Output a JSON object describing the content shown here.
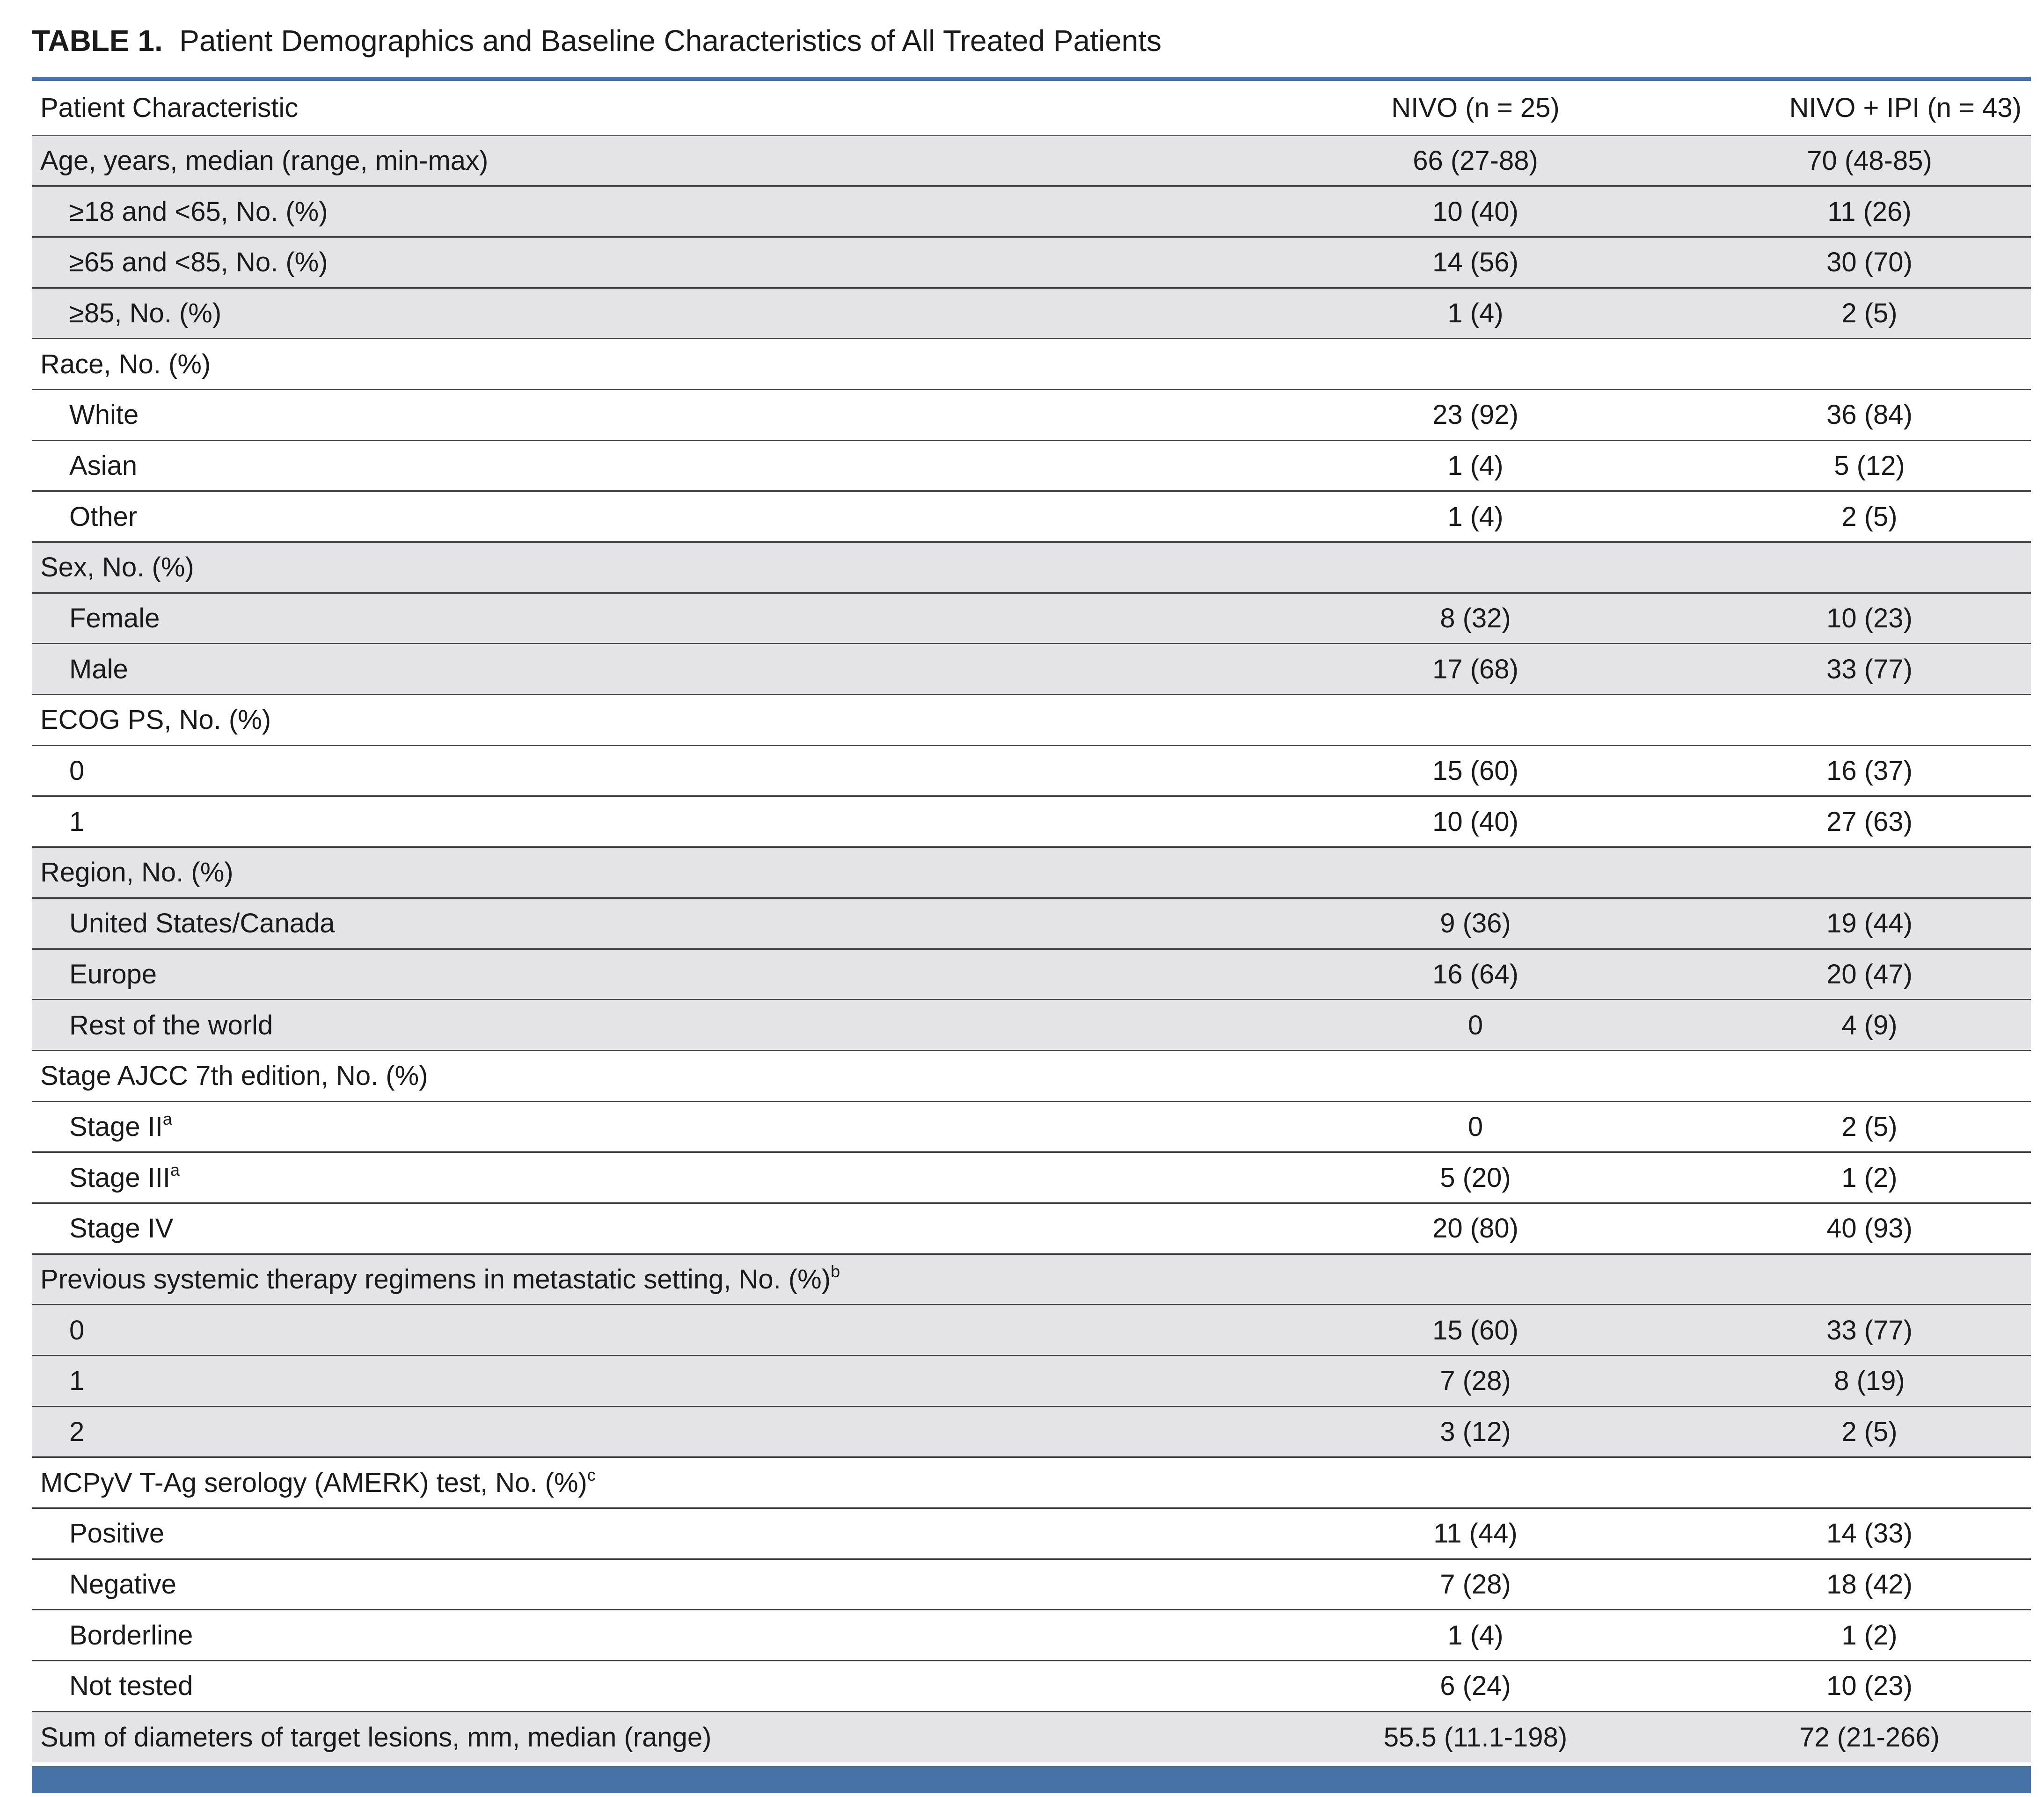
{
  "caption": {
    "label": "TABLE 1.",
    "text": "Patient Demographics and Baseline Characteristics of All Treated Patients"
  },
  "columns": [
    "Patient Characteristic",
    "NIVO (n = 25)",
    "NIVO + IPI (n = 43)"
  ],
  "rows": [
    {
      "label": "Age, years, median (range, min-max)",
      "sup": "",
      "indent": false,
      "shade": true,
      "nivo": "66 (27-88)",
      "combo": "70 (48-85)"
    },
    {
      "label": "≥18 and <65, No. (%)",
      "sup": "",
      "indent": true,
      "shade": true,
      "nivo": "10 (40)",
      "combo": "11 (26)"
    },
    {
      "label": "≥65 and <85, No. (%)",
      "sup": "",
      "indent": true,
      "shade": true,
      "nivo": "14 (56)",
      "combo": "30 (70)"
    },
    {
      "label": "≥85, No. (%)",
      "sup": "",
      "indent": true,
      "shade": true,
      "nivo": "1 (4)",
      "combo": "2 (5)"
    },
    {
      "label": "Race, No. (%)",
      "sup": "",
      "indent": false,
      "shade": false,
      "nivo": "",
      "combo": ""
    },
    {
      "label": "White",
      "sup": "",
      "indent": true,
      "shade": false,
      "nivo": "23 (92)",
      "combo": "36 (84)"
    },
    {
      "label": "Asian",
      "sup": "",
      "indent": true,
      "shade": false,
      "nivo": "1 (4)",
      "combo": "5 (12)"
    },
    {
      "label": "Other",
      "sup": "",
      "indent": true,
      "shade": false,
      "nivo": "1 (4)",
      "combo": "2 (5)"
    },
    {
      "label": "Sex, No. (%)",
      "sup": "",
      "indent": false,
      "shade": true,
      "nivo": "",
      "combo": ""
    },
    {
      "label": "Female",
      "sup": "",
      "indent": true,
      "shade": true,
      "nivo": "8 (32)",
      "combo": "10 (23)"
    },
    {
      "label": "Male",
      "sup": "",
      "indent": true,
      "shade": true,
      "nivo": "17 (68)",
      "combo": "33 (77)"
    },
    {
      "label": "ECOG PS, No. (%)",
      "sup": "",
      "indent": false,
      "shade": false,
      "nivo": "",
      "combo": ""
    },
    {
      "label": "0",
      "sup": "",
      "indent": true,
      "shade": false,
      "nivo": "15 (60)",
      "combo": "16 (37)"
    },
    {
      "label": "1",
      "sup": "",
      "indent": true,
      "shade": false,
      "nivo": "10 (40)",
      "combo": "27 (63)"
    },
    {
      "label": "Region, No. (%)",
      "sup": "",
      "indent": false,
      "shade": true,
      "nivo": "",
      "combo": ""
    },
    {
      "label": "United States/Canada",
      "sup": "",
      "indent": true,
      "shade": true,
      "nivo": "9 (36)",
      "combo": "19 (44)"
    },
    {
      "label": "Europe",
      "sup": "",
      "indent": true,
      "shade": true,
      "nivo": "16 (64)",
      "combo": "20 (47)"
    },
    {
      "label": "Rest of the world",
      "sup": "",
      "indent": true,
      "shade": true,
      "nivo": "0",
      "combo": "4 (9)"
    },
    {
      "label": "Stage AJCC 7th edition, No. (%)",
      "sup": "",
      "indent": false,
      "shade": false,
      "nivo": "",
      "combo": ""
    },
    {
      "label": "Stage II",
      "sup": "a",
      "indent": true,
      "shade": false,
      "nivo": "0",
      "combo": "2 (5)"
    },
    {
      "label": "Stage III",
      "sup": "a",
      "indent": true,
      "shade": false,
      "nivo": "5 (20)",
      "combo": "1 (2)"
    },
    {
      "label": "Stage IV",
      "sup": "",
      "indent": true,
      "shade": false,
      "nivo": "20 (80)",
      "combo": "40 (93)"
    },
    {
      "label": "Previous systemic therapy regimens in metastatic setting, No. (%)",
      "sup": "b",
      "indent": false,
      "shade": true,
      "nivo": "",
      "combo": ""
    },
    {
      "label": "0",
      "sup": "",
      "indent": true,
      "shade": true,
      "nivo": "15 (60)",
      "combo": "33 (77)"
    },
    {
      "label": "1",
      "sup": "",
      "indent": true,
      "shade": true,
      "nivo": "7 (28)",
      "combo": "8 (19)"
    },
    {
      "label": "2",
      "sup": "",
      "indent": true,
      "shade": true,
      "nivo": "3 (12)",
      "combo": "2 (5)"
    },
    {
      "label": "MCPyV T-Ag serology (AMERK) test, No. (%)",
      "sup": "c",
      "indent": false,
      "shade": false,
      "nivo": "",
      "combo": ""
    },
    {
      "label": "Positive",
      "sup": "",
      "indent": true,
      "shade": false,
      "nivo": "11 (44)",
      "combo": "14 (33)"
    },
    {
      "label": "Negative",
      "sup": "",
      "indent": true,
      "shade": false,
      "nivo": "7 (28)",
      "combo": "18 (42)"
    },
    {
      "label": "Borderline",
      "sup": "",
      "indent": true,
      "shade": false,
      "nivo": "1 (4)",
      "combo": "1 (2)"
    },
    {
      "label": "Not tested",
      "sup": "",
      "indent": true,
      "shade": false,
      "nivo": "6 (24)",
      "combo": "10 (23)"
    },
    {
      "label": "Sum of diameters of target lesions, mm, median (range)",
      "sup": "",
      "indent": false,
      "shade": true,
      "nivo": "55.5 (11.1-198)",
      "combo": "72 (21-266)"
    }
  ]
}
